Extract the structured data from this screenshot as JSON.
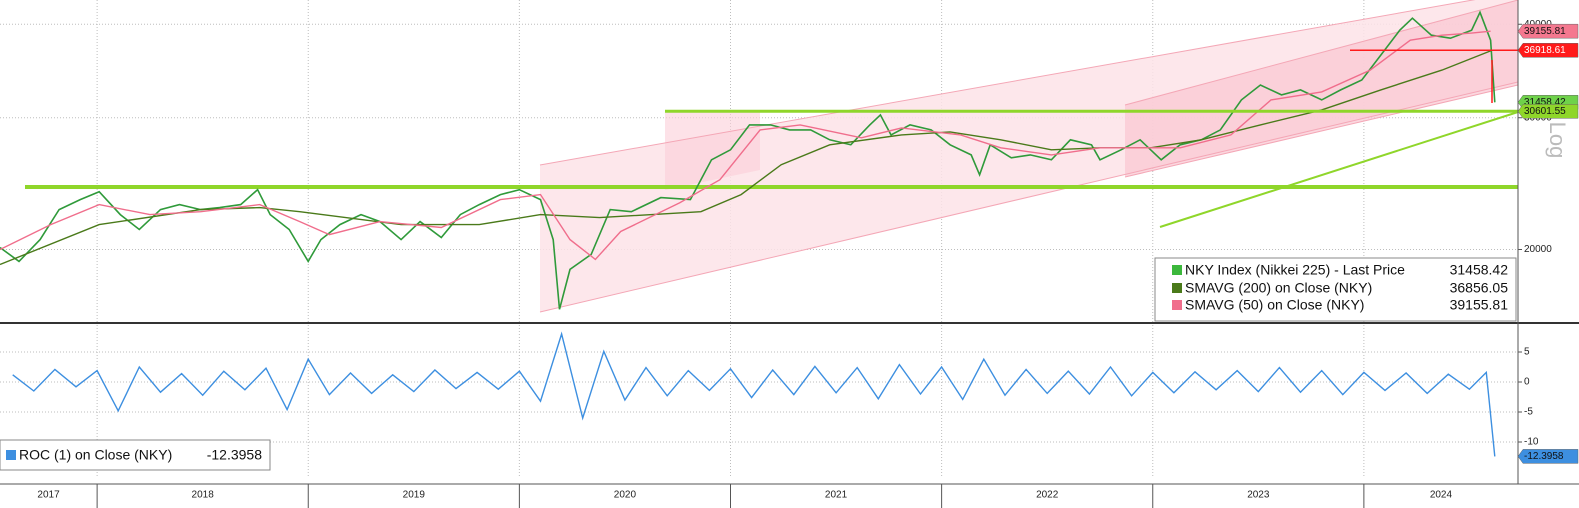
{
  "chart_data": [
    {
      "type": "line",
      "log_scale": true,
      "grid": true,
      "axis_label": "Log",
      "ylim": [
        16000,
        43100
      ],
      "yticks": [
        20000,
        30000,
        40000
      ],
      "xlim": [
        2017.54,
        2024.73
      ],
      "xticks": [
        2017,
        2018,
        2019,
        2020,
        2021,
        2022,
        2023,
        2024
      ],
      "series": [
        {
          "name": "NKY Index (Nikkei 225) - Last Price",
          "color": "#2f9a3a",
          "legend_color": "#3cb83c",
          "tag_color": "#6fd24a",
          "x": [
            2017.54,
            2017.63,
            2017.73,
            2017.82,
            2017.92,
            2018.01,
            2018.11,
            2018.2,
            2018.3,
            2018.39,
            2018.49,
            2018.58,
            2018.68,
            2018.76,
            2018.82,
            2018.91,
            2019.0,
            2019.06,
            2019.15,
            2019.25,
            2019.34,
            2019.44,
            2019.53,
            2019.63,
            2019.72,
            2019.81,
            2019.91,
            2020.0,
            2020.1,
            2020.16,
            2020.19,
            2020.24,
            2020.34,
            2020.43,
            2020.53,
            2020.67,
            2020.81,
            2020.86,
            2020.91,
            2021.0,
            2021.09,
            2021.19,
            2021.28,
            2021.38,
            2021.47,
            2021.57,
            2021.66,
            2021.71,
            2021.76,
            2021.85,
            2021.95,
            2022.04,
            2022.14,
            2022.18,
            2022.23,
            2022.33,
            2022.42,
            2022.52,
            2022.61,
            2022.71,
            2022.75,
            2022.85,
            2022.94,
            2023.04,
            2023.13,
            2023.23,
            2023.32,
            2023.42,
            2023.51,
            2023.61,
            2023.7,
            2023.8,
            2023.89,
            2023.99,
            2024.08,
            2024.17,
            2024.23,
            2024.32,
            2024.41,
            2024.51,
            2024.55,
            2024.6,
            2024.62
          ],
          "values": [
            20120,
            19280,
            20620,
            22610,
            23320,
            23890,
            22270,
            21270,
            22610,
            22960,
            22610,
            22750,
            22960,
            24040,
            22270,
            21270,
            19280,
            20620,
            21590,
            22270,
            21790,
            20620,
            21790,
            20750,
            22270,
            22960,
            23680,
            24040,
            23320,
            20620,
            16640,
            18810,
            19700,
            22610,
            22470,
            23460,
            23320,
            24790,
            26360,
            27180,
            29350,
            29350,
            28900,
            28900,
            28030,
            27600,
            29350,
            30260,
            28460,
            29350,
            28900,
            27600,
            26760,
            25170,
            27600,
            26520,
            26760,
            26360,
            28030,
            27600,
            26360,
            27180,
            28030,
            26360,
            27600,
            28030,
            28900,
            31690,
            33180,
            32180,
            32680,
            31690,
            32680,
            33690,
            36380,
            39280,
            40750,
            38680,
            38320,
            39280,
            41500,
            38090,
            31458.42
          ]
        },
        {
          "name": "SMAVG (200)  on Close (NKY)",
          "color": "#4a7a1a",
          "legend_color": "#4a7a1a",
          "x": [
            2017.54,
            2018.01,
            2018.49,
            2018.77,
            2018.96,
            2019.44,
            2019.81,
            2020.1,
            2020.38,
            2020.86,
            2021.05,
            2021.24,
            2021.47,
            2021.81,
            2022.04,
            2022.28,
            2022.52,
            2022.75,
            2022.99,
            2023.23,
            2023.51,
            2023.8,
            2024.08,
            2024.37,
            2024.6
          ],
          "values": [
            19100,
            21590,
            22610,
            22750,
            22470,
            21590,
            21590,
            22270,
            22060,
            22470,
            23680,
            25960,
            27600,
            28460,
            28720,
            28030,
            27180,
            27350,
            27350,
            28030,
            29350,
            30730,
            32680,
            34740,
            36856.05
          ]
        },
        {
          "name": "SMAVG (50)  on Close (NKY)",
          "color": "#f06e8c",
          "legend_color": "#f06e8c",
          "tag_color": "#f4788f",
          "x": [
            2017.54,
            2017.78,
            2018.01,
            2018.25,
            2018.49,
            2018.77,
            2018.96,
            2019.1,
            2019.34,
            2019.63,
            2019.91,
            2020.1,
            2020.24,
            2020.36,
            2020.48,
            2020.76,
            2020.95,
            2021.14,
            2021.33,
            2021.62,
            2021.81,
            2022.09,
            2022.28,
            2022.52,
            2022.75,
            2022.94,
            2023.13,
            2023.37,
            2023.56,
            2023.8,
            2024.03,
            2024.22,
            2024.37,
            2024.51,
            2024.6
          ],
          "values": [
            20000,
            21590,
            22960,
            22270,
            22470,
            22960,
            21790,
            20940,
            21790,
            21400,
            23320,
            23680,
            20620,
            19400,
            21140,
            23100,
            24790,
            28900,
            29350,
            28200,
            29080,
            28460,
            27350,
            26760,
            27350,
            27350,
            27350,
            28460,
            31690,
            32480,
            34740,
            38090,
            38680,
            38920,
            39155.81
          ]
        }
      ],
      "levels": [
        {
          "value": 36918.61,
          "color": "#ff1a1a"
        },
        {
          "value": 30601.55,
          "color": "#8fd62a"
        }
      ]
    },
    {
      "type": "line",
      "grid": true,
      "ylim": [
        -16,
        9.5
      ],
      "yticks": [
        5,
        0,
        -5,
        -10
      ],
      "xlim": [
        2017.54,
        2024.73
      ],
      "series": [
        {
          "name": "ROC (1)  on Close (NKY)",
          "color": "#3d8fe0",
          "x": [
            2017.6,
            2017.7,
            2017.8,
            2017.9,
            2018.0,
            2018.1,
            2018.2,
            2018.3,
            2018.4,
            2018.5,
            2018.6,
            2018.7,
            2018.8,
            2018.9,
            2019.0,
            2019.1,
            2019.2,
            2019.3,
            2019.4,
            2019.5,
            2019.6,
            2019.7,
            2019.8,
            2019.9,
            2020.0,
            2020.1,
            2020.2,
            2020.3,
            2020.4,
            2020.5,
            2020.6,
            2020.7,
            2020.8,
            2020.9,
            2021.0,
            2021.1,
            2021.2,
            2021.3,
            2021.4,
            2021.5,
            2021.6,
            2021.7,
            2021.8,
            2021.9,
            2022.0,
            2022.1,
            2022.2,
            2022.3,
            2022.4,
            2022.5,
            2022.6,
            2022.7,
            2022.8,
            2022.9,
            2023.0,
            2023.1,
            2023.2,
            2023.3,
            2023.4,
            2023.5,
            2023.6,
            2023.7,
            2023.8,
            2023.9,
            2024.0,
            2024.1,
            2024.2,
            2024.3,
            2024.4,
            2024.5,
            2024.58,
            2024.62
          ],
          "values": [
            1.2,
            -1.5,
            2.1,
            -0.8,
            1.9,
            -4.8,
            2.5,
            -1.7,
            1.4,
            -2.2,
            1.8,
            -1.3,
            2.3,
            -4.6,
            3.8,
            -2.1,
            1.5,
            -1.9,
            1.2,
            -1.6,
            2.0,
            -1.1,
            1.6,
            -1.2,
            1.8,
            -3.2,
            8.0,
            -6.0,
            5.1,
            -3.0,
            2.4,
            -2.3,
            1.9,
            -1.4,
            2.2,
            -2.6,
            2.0,
            -2.1,
            2.6,
            -1.8,
            2.4,
            -2.8,
            2.9,
            -2.0,
            2.5,
            -2.9,
            3.8,
            -2.2,
            2.1,
            -1.9,
            1.8,
            -2.0,
            2.5,
            -2.3,
            1.6,
            -1.8,
            1.7,
            -1.3,
            1.9,
            -1.6,
            2.4,
            -1.7,
            1.9,
            -2.1,
            1.6,
            -1.4,
            1.5,
            -1.9,
            1.3,
            -1.2,
            1.6,
            -12.3958
          ]
        }
      ]
    }
  ]
}
